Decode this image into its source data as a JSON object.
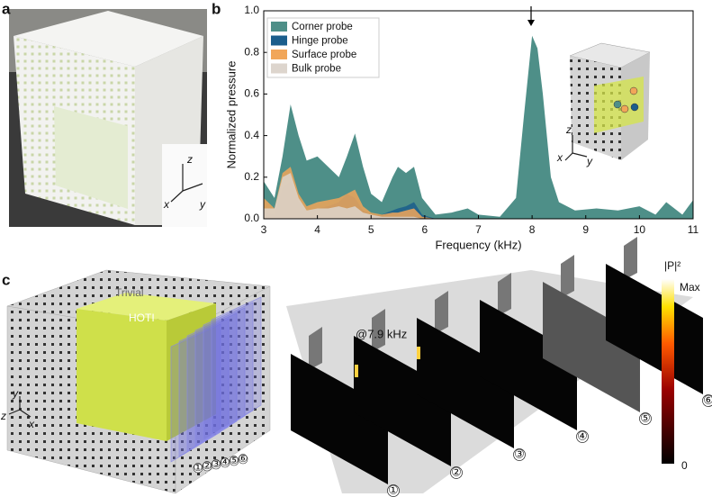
{
  "chart_data": {
    "type": "area",
    "xlabel": "Frequency (kHz)",
    "ylabel": "Normalized pressure",
    "x": [
      3.0,
      3.2,
      3.35,
      3.5,
      3.65,
      3.8,
      4.0,
      4.2,
      4.4,
      4.55,
      4.7,
      4.85,
      5.0,
      5.2,
      5.4,
      5.5,
      5.65,
      5.8,
      5.95,
      6.2,
      6.5,
      6.8,
      7.0,
      7.4,
      7.7,
      7.85,
      8.0,
      8.1,
      8.2,
      8.35,
      8.5,
      8.8,
      9.2,
      9.6,
      10.0,
      10.3,
      10.5,
      10.8,
      11.0
    ],
    "series": [
      {
        "name": "Corner probe",
        "color": "#4e8f88",
        "values": [
          0.18,
          0.1,
          0.3,
          0.55,
          0.4,
          0.28,
          0.3,
          0.25,
          0.2,
          0.3,
          0.41,
          0.25,
          0.12,
          0.08,
          0.2,
          0.25,
          0.22,
          0.25,
          0.1,
          0.02,
          0.03,
          0.05,
          0.02,
          0.01,
          0.1,
          0.5,
          0.88,
          0.82,
          0.6,
          0.2,
          0.08,
          0.04,
          0.05,
          0.04,
          0.06,
          0.02,
          0.08,
          0.02,
          0.09
        ]
      },
      {
        "name": "Hinge probe",
        "color": "#1b5e8c",
        "values": [
          0.03,
          0.02,
          0.15,
          0.18,
          0.08,
          0.04,
          0.05,
          0.06,
          0.08,
          0.12,
          0.1,
          0.04,
          0.02,
          0.02,
          0.04,
          0.05,
          0.06,
          0.08,
          0.02,
          0,
          0,
          0,
          0,
          0,
          0,
          0,
          0,
          0,
          0,
          0,
          0,
          0,
          0,
          0,
          0,
          0,
          0,
          0,
          0
        ]
      },
      {
        "name": "Surface probe",
        "color": "#f1a659",
        "values": [
          0.1,
          0.05,
          0.22,
          0.25,
          0.12,
          0.06,
          0.08,
          0.09,
          0.1,
          0.12,
          0.14,
          0.06,
          0.03,
          0.02,
          0.03,
          0.03,
          0.04,
          0.05,
          0.01,
          0,
          0,
          0,
          0,
          0,
          0,
          0,
          0,
          0,
          0,
          0,
          0,
          0,
          0,
          0,
          0,
          0,
          0,
          0,
          0
        ]
      },
      {
        "name": "Bulk probe",
        "color": "#ddd5cd",
        "values": [
          0.05,
          0.05,
          0.2,
          0.22,
          0.1,
          0.04,
          0.05,
          0.05,
          0.06,
          0.05,
          0.06,
          0.03,
          0.02,
          0.01,
          0.01,
          0.01,
          0.01,
          0.01,
          0,
          0,
          0,
          0,
          0,
          0,
          0,
          0,
          0,
          0,
          0,
          0,
          0,
          0,
          0,
          0,
          0,
          0,
          0,
          0,
          0
        ]
      }
    ],
    "xlim": [
      3,
      11
    ],
    "xticks": [
      3,
      4,
      5,
      6,
      7,
      8,
      9,
      10,
      11
    ],
    "ylim": [
      0,
      1
    ],
    "yticks": [
      {
        "value": 0,
        "label": "0.0"
      },
      0.2,
      0.4,
      0.6,
      0.8,
      {
        "value": 1,
        "label": "1.0"
      }
    ],
    "legend": "upper left"
  },
  "panels": {
    "a": {
      "label": "a",
      "axes": [
        "z",
        "x",
        "y"
      ]
    },
    "b": {
      "label": "b",
      "inset_axes": [
        "z",
        "x",
        "y"
      ]
    },
    "c": {
      "label": "c",
      "axes": [
        "y",
        "z",
        "x"
      ],
      "outer": "Trivial",
      "inner": "HOTI",
      "frequency": "@7.9 kHz",
      "colorbar_title": "|P|²",
      "colorbar_max": "Max",
      "colorbar_min": "0",
      "slice_labels": [
        "①",
        "②",
        "③",
        "④",
        "⑤",
        "⑥"
      ],
      "panel_labels": [
        "①",
        "②",
        "③",
        "④",
        "⑤",
        "⑥"
      ]
    }
  }
}
